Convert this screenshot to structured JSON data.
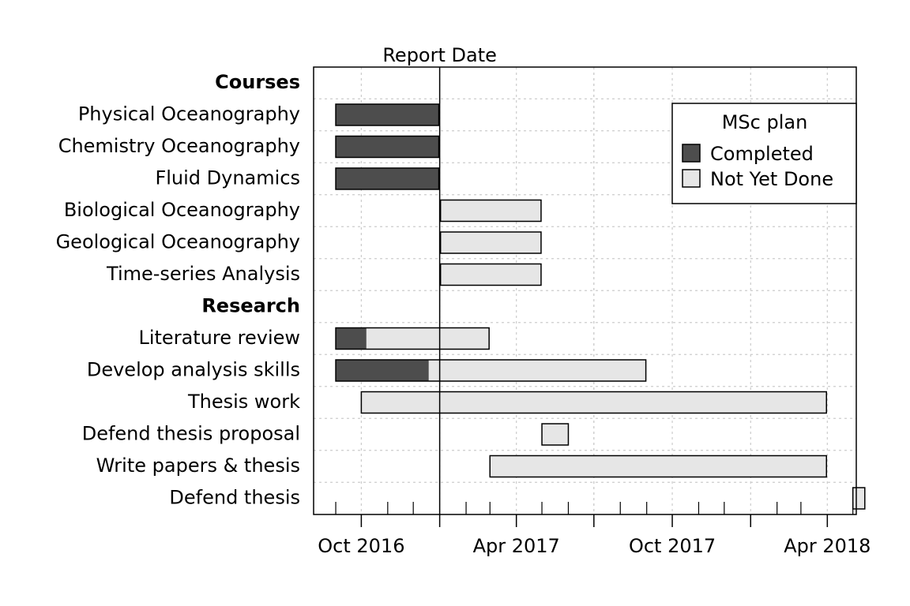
{
  "colors": {
    "completed": "#4d4d4d",
    "not_yet_done": "#e6e6e6",
    "outline": "#000000",
    "grid": "#cccccc"
  },
  "chart_data": {
    "type": "gantt",
    "title": "",
    "x_axis": {
      "range": [
        "2016-08-06",
        "2018-05-05"
      ],
      "ticks": [
        {
          "date": "2016-10-01",
          "label": "Oct 2016"
        },
        {
          "date": "2017-04-01",
          "label": "Apr 2017"
        },
        {
          "date": "2017-10-01",
          "label": "Oct 2017"
        },
        {
          "date": "2018-04-01",
          "label": "Apr 2018"
        }
      ],
      "minor_tick_unit": "month"
    },
    "report_date": {
      "date": "2017-01-01",
      "label": "Report Date"
    },
    "grid": true,
    "legend": {
      "title": "MSc plan",
      "position": "top-right",
      "entries": [
        {
          "key": "completed",
          "label": "Completed"
        },
        {
          "key": "not_yet_done",
          "label": "Not Yet Done"
        }
      ]
    },
    "rows": [
      {
        "label": "Courses",
        "section": true
      },
      {
        "label": "Physical Oceanography",
        "start": "2016-09-01",
        "end": "2016-12-31",
        "done": 100
      },
      {
        "label": "Chemistry Oceanography",
        "start": "2016-09-01",
        "end": "2016-12-31",
        "done": 100
      },
      {
        "label": "Fluid Dynamics",
        "start": "2016-09-01",
        "end": "2016-12-31",
        "done": 100
      },
      {
        "label": "Biological Oceanography",
        "start": "2017-01-02",
        "end": "2017-04-30",
        "done": 0
      },
      {
        "label": "Geological Oceanography",
        "start": "2017-01-02",
        "end": "2017-04-30",
        "done": 0
      },
      {
        "label": "Time-series Analysis",
        "start": "2017-01-02",
        "end": "2017-04-30",
        "done": 0
      },
      {
        "label": "Research",
        "section": true
      },
      {
        "label": "Literature review",
        "start": "2016-09-01",
        "end": "2017-02-28",
        "done": 20
      },
      {
        "label": "Develop analysis skills",
        "start": "2016-09-01",
        "end": "2017-08-31",
        "done": 30
      },
      {
        "label": "Thesis work",
        "start": "2016-10-01",
        "end": "2018-03-31",
        "done": 0
      },
      {
        "label": "Defend thesis proposal",
        "start": "2017-05-01",
        "end": "2017-06-01",
        "done": 0
      },
      {
        "label": "Write papers & thesis",
        "start": "2017-03-01",
        "end": "2018-03-31",
        "done": 0
      },
      {
        "label": "Defend thesis",
        "start": "2018-05-01",
        "end": "2018-05-15",
        "done": 0
      }
    ]
  }
}
